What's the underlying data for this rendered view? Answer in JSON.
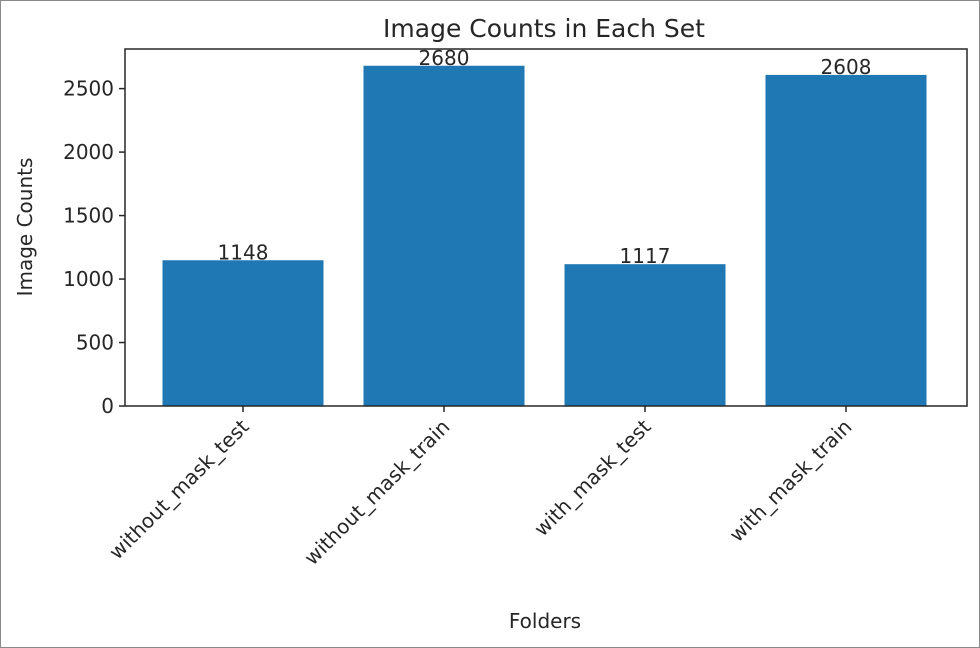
{
  "chart_data": {
    "type": "bar",
    "title": "Image Counts in Each Set",
    "xlabel": "Folders",
    "ylabel": "Image Counts",
    "categories": [
      "without_mask_test",
      "without_mask_train",
      "with_mask_test",
      "with_mask_train"
    ],
    "values": [
      1148,
      2680,
      1117,
      2608
    ],
    "value_labels": [
      "1148",
      "2680",
      "1117",
      "2608"
    ],
    "ylim": [
      0,
      2812
    ],
    "yticks": [
      0,
      500,
      1000,
      1500,
      2000,
      2500
    ],
    "ytick_labels": [
      "0",
      "500",
      "1000",
      "1500",
      "2000",
      "2500"
    ],
    "bar_color": "#1f77b4",
    "grid": false,
    "legend": false
  }
}
